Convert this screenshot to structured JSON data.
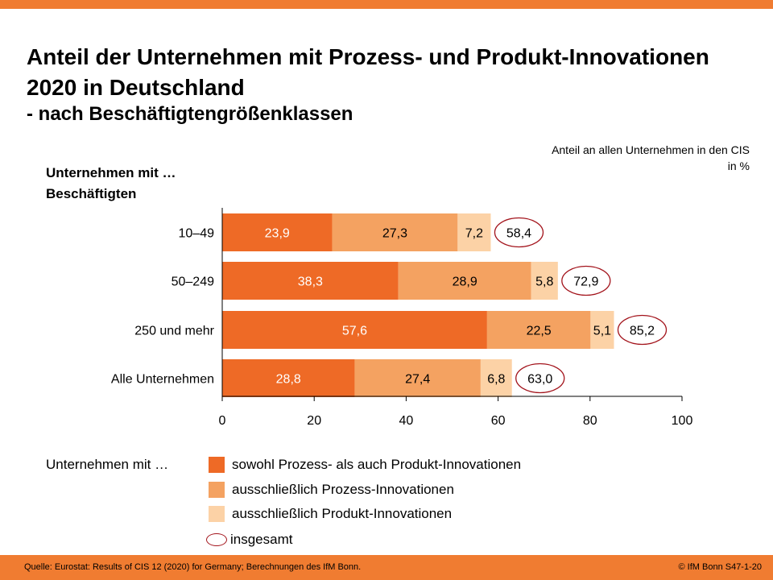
{
  "header": {
    "title": "Anteil der Unternehmen mit Prozess- und Produkt-Innovationen 2020 in Deutschland",
    "subtitle": "- nach Beschäftigtengrößenklassen",
    "unit_note": "Anteil an allen Unternehmen in den CIS in %",
    "y_axis_title": "Unternehmen mit … Beschäftigten"
  },
  "colors": {
    "accent_bar": "#f07c31",
    "series_both": "#ee6a26",
    "series_process": "#f4a261",
    "series_product": "#fcd2a6",
    "total_ellipse": "#a3141c"
  },
  "chart_data": {
    "type": "bar",
    "orientation": "horizontal",
    "stacked": true,
    "categories": [
      "10–49",
      "50–249",
      "250 und mehr",
      "Alle Unternehmen"
    ],
    "series": [
      {
        "name": "sowohl Prozess- als auch Produkt-Innovationen",
        "values": [
          23.9,
          38.3,
          57.6,
          28.8
        ],
        "labels": [
          "23,9",
          "38,3",
          "57,6",
          "28,8"
        ]
      },
      {
        "name": "ausschließlich Prozess-Innovationen",
        "values": [
          27.3,
          28.9,
          22.5,
          27.4
        ],
        "labels": [
          "27,3",
          "28,9",
          "22,5",
          "27,4"
        ]
      },
      {
        "name": "ausschließlich Produkt-Innovationen",
        "values": [
          7.2,
          5.8,
          5.1,
          6.8
        ],
        "labels": [
          "7,2",
          "5,8",
          "5,1",
          "6,8"
        ]
      }
    ],
    "totals": {
      "name": "insgesamt",
      "values": [
        58.4,
        72.9,
        85.2,
        63.0
      ],
      "labels": [
        "58,4",
        "72,9",
        "85,2",
        "63,0"
      ]
    },
    "xlim": [
      0,
      100
    ],
    "xticks": [
      0,
      20,
      40,
      60,
      80,
      100
    ],
    "grid": false,
    "legend_position": "bottom"
  },
  "legend": {
    "title": "Unternehmen  mit …",
    "total_label": "insgesamt"
  },
  "footer": {
    "source": "Quelle: Eurostat: Results of CIS 12 (2020) for Germany; Berechnungen  des IfM Bonn.",
    "copyright": "© IfM  Bonn S47-1-20"
  }
}
